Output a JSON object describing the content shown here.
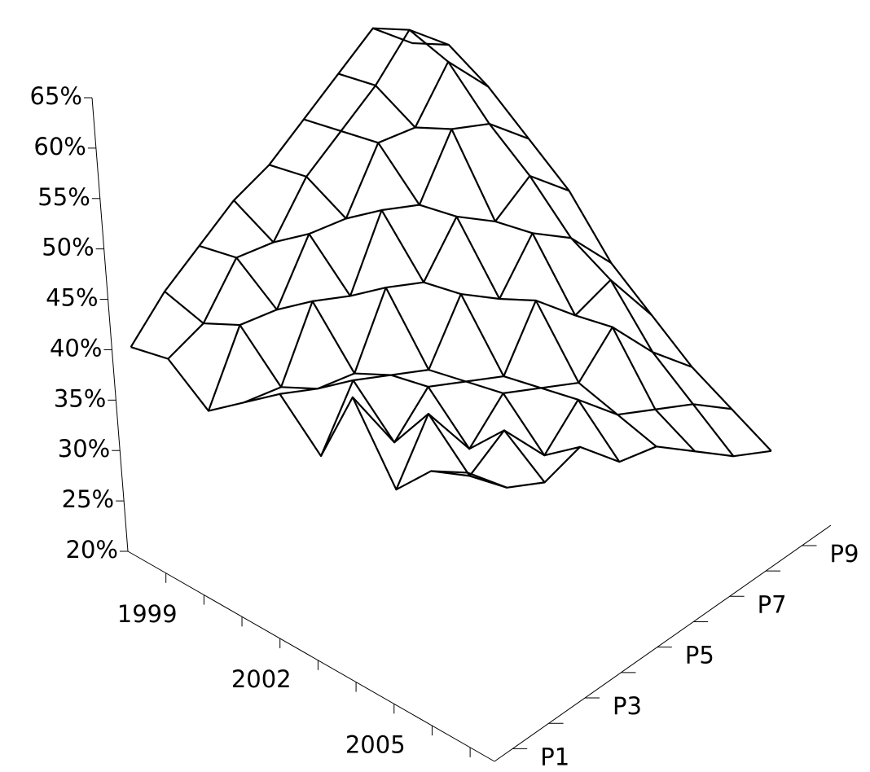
{
  "chart_data": {
    "type": "surface",
    "categories": [
      null,
      "1999",
      null,
      null,
      "2002",
      null,
      null,
      "2005",
      null,
      null
    ],
    "y_categories": [
      "P1",
      null,
      "P3",
      null,
      "P5",
      null,
      "P7",
      null,
      "P9"
    ],
    "values": [
      [
        39,
        42,
        44,
        46,
        47,
        49,
        51,
        53,
        49
      ],
      [
        40,
        41,
        45,
        44,
        48,
        50,
        52,
        55,
        51
      ],
      [
        37,
        43,
        42,
        47,
        46,
        51,
        50,
        54,
        49
      ],
      [
        40,
        39,
        45,
        43,
        49,
        47,
        52,
        50,
        46
      ],
      [
        43,
        41,
        40,
        46,
        44,
        48,
        45,
        47,
        43
      ],
      [
        39,
        44,
        42,
        40,
        45,
        42,
        46,
        43,
        38
      ],
      [
        47,
        40,
        43,
        41,
        39,
        44,
        40,
        41,
        35
      ],
      [
        40,
        45,
        39,
        42,
        40,
        38,
        41,
        36,
        32
      ],
      [
        44,
        41,
        43,
        38,
        41,
        37,
        35,
        33,
        30
      ],
      [
        46,
        42,
        40,
        41,
        37,
        36,
        33,
        30,
        28
      ]
    ],
    "color": "#000000",
    "zlim": [
      20,
      65
    ],
    "zticks": [
      {
        "value": 20,
        "label": "20%"
      },
      {
        "value": 25,
        "label": "25%"
      },
      {
        "value": 30,
        "label": "30%"
      },
      {
        "value": 35,
        "label": "35%"
      },
      {
        "value": 40,
        "label": "40%"
      },
      {
        "value": 45,
        "label": "45%"
      },
      {
        "value": 50,
        "label": "50%"
      },
      {
        "value": 55,
        "label": "55%"
      },
      {
        "value": 60,
        "label": "60%"
      },
      {
        "value": 65,
        "label": "65%"
      }
    ]
  }
}
